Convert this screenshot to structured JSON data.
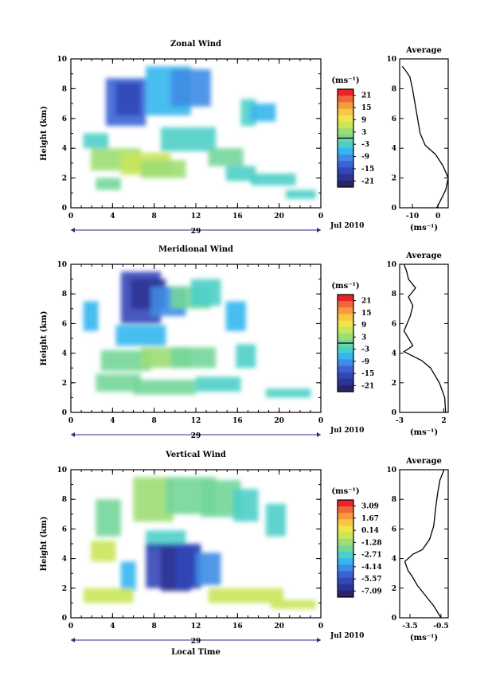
{
  "chart_data": [
    {
      "type": "heatmap",
      "title": "Zonal Wind",
      "ylabel": "Height (km)",
      "xlim": [
        0,
        24
      ],
      "ylim": [
        0,
        10
      ],
      "x_ticks": [
        "0",
        "4",
        "8",
        "12",
        "16",
        "20",
        "0"
      ],
      "y_ticks": [
        "0",
        "2",
        "4",
        "6",
        "8",
        "10"
      ],
      "date_label": "29",
      "month_label": "Jul 2010",
      "colorbar": {
        "unit": "(ms⁻¹)",
        "ticks": [
          "21",
          "15",
          "9",
          "3",
          "-3",
          "-9",
          "-15",
          "-21"
        ],
        "colors": [
          "#e8242a",
          "#f0683a",
          "#f59a3e",
          "#f9c545",
          "#efe44c",
          "#c9e65a",
          "#9ddd73",
          "#73d69a",
          "#4ccfc6",
          "#35b6ee",
          "#3e8ce6",
          "#3a64d6",
          "#3347b8",
          "#2d3594",
          "#2a2466"
        ]
      },
      "zero_marker": 0.5,
      "average": {
        "title": "Average",
        "xlabel": "(ms⁻¹)",
        "xlim": [
          -15,
          4
        ],
        "x_ticks": [
          "-10",
          "0"
        ],
        "x_tick_values": [
          -10,
          0
        ],
        "y_ticks": [
          "0",
          "2",
          "4",
          "6",
          "8",
          "10"
        ],
        "profile_x": [
          -0.5,
          1,
          3,
          4,
          2,
          -1,
          -5,
          -7,
          -8,
          -9,
          -10,
          -11,
          -13,
          -14
        ],
        "profile_y": [
          0,
          0.5,
          1.2,
          2,
          2.8,
          3.6,
          4.2,
          5,
          6,
          7,
          8,
          8.8,
          9.3,
          9.5
        ]
      }
    },
    {
      "type": "heatmap",
      "title": "Meridional Wind",
      "ylabel": "Height (km)",
      "xlim": [
        0,
        24
      ],
      "ylim": [
        0,
        10
      ],
      "x_ticks": [
        "0",
        "4",
        "8",
        "12",
        "16",
        "20",
        "0"
      ],
      "y_ticks": [
        "0",
        "2",
        "4",
        "6",
        "8",
        "10"
      ],
      "date_label": "29",
      "month_label": "Jul 2010",
      "colorbar": {
        "unit": "(ms⁻¹)",
        "ticks": [
          "21",
          "15",
          "9",
          "3",
          "-3",
          "-9",
          "-15",
          "-21"
        ],
        "colors": [
          "#e8242a",
          "#f0683a",
          "#f59a3e",
          "#f9c545",
          "#efe44c",
          "#c9e65a",
          "#9ddd73",
          "#73d69a",
          "#4ccfc6",
          "#35b6ee",
          "#3e8ce6",
          "#3a64d6",
          "#3347b8",
          "#2d3594",
          "#2a2466"
        ]
      },
      "zero_marker": 0.5,
      "average": {
        "title": "Average",
        "xlabel": "(ms⁻¹)",
        "xlim": [
          -3,
          2.5
        ],
        "x_ticks": [
          "-3",
          "2"
        ],
        "x_tick_values": [
          -3,
          2
        ],
        "y_ticks": [
          "0",
          "2",
          "4",
          "6",
          "8",
          "10"
        ],
        "profile_x": [
          2.2,
          2.1,
          1.5,
          0.5,
          -0.5,
          -2.5,
          -1.5,
          -2.5,
          -1.8,
          -1.5,
          -2.0,
          -1.2,
          -2.0,
          -2.2,
          -2.5
        ],
        "profile_y": [
          0,
          1,
          2,
          3,
          3.5,
          4.1,
          4.5,
          5.5,
          6.5,
          7.2,
          7.8,
          8.4,
          9.0,
          9.5,
          10
        ]
      }
    },
    {
      "type": "heatmap",
      "title": "Vertical Wind",
      "ylabel": "Height (km)",
      "xlabel": "Local Time",
      "xlim": [
        0,
        24
      ],
      "ylim": [
        0,
        10
      ],
      "x_ticks": [
        "0",
        "4",
        "8",
        "12",
        "16",
        "20",
        "0"
      ],
      "y_ticks": [
        "0",
        "2",
        "4",
        "6",
        "8",
        "10"
      ],
      "date_label": "29",
      "month_label": "Jul 2010",
      "colorbar": {
        "unit": "(ms⁻¹)",
        "ticks": [
          "3.09",
          "1.67",
          "0.14",
          "-1.28",
          "-2.71",
          "-4.14",
          "-5.57",
          "-7.09"
        ],
        "colors": [
          "#e8242a",
          "#f0683a",
          "#f59a3e",
          "#f9c545",
          "#efe44c",
          "#c9e65a",
          "#9ddd73",
          "#73d69a",
          "#4ccfc6",
          "#35b6ee",
          "#3e8ce6",
          "#3a64d6",
          "#3347b8",
          "#2d3594",
          "#2a2466"
        ]
      },
      "zero_marker": null,
      "average": {
        "title": "Average",
        "xlabel": "(ms⁻¹)",
        "xlim": [
          -4.5,
          0.2
        ],
        "x_ticks": [
          "-3.5",
          "-0.5"
        ],
        "x_tick_values": [
          -3.5,
          -0.5
        ],
        "y_ticks": [
          "0",
          "2",
          "4",
          "6",
          "8",
          "10"
        ],
        "profile_x": [
          -0.5,
          -1.2,
          -2.0,
          -2.8,
          -3.3,
          -3.7,
          -4.0,
          -3.2,
          -2.3,
          -1.6,
          -1.2,
          -1.0,
          -0.8,
          -0.6,
          -0.2
        ],
        "profile_y": [
          0,
          0.8,
          1.5,
          2.2,
          2.8,
          3.2,
          3.8,
          4.3,
          4.6,
          5.3,
          6.2,
          7.5,
          8.5,
          9.3,
          10
        ]
      }
    }
  ]
}
